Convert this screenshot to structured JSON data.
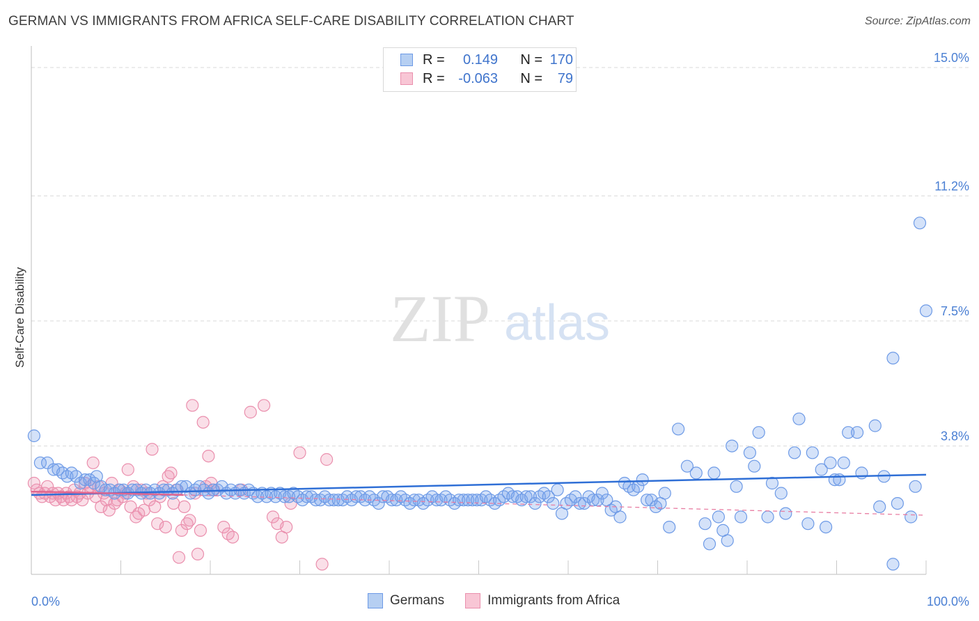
{
  "header": {
    "title": "GERMAN VS IMMIGRANTS FROM AFRICA SELF-CARE DISABILITY CORRELATION CHART",
    "source": "Source: ZipAtlas.com"
  },
  "watermark": {
    "zip": "ZIP",
    "atlas": "atlas"
  },
  "legend_box": {
    "rows": [
      {
        "r_label": "R =",
        "r_value": "0.149",
        "n_label": "N =",
        "n_value": "170",
        "color": "#6d9ae6"
      },
      {
        "r_label": "R =",
        "r_value": "-0.063",
        "n_label": "N =",
        "n_value": "79",
        "color": "#ea8fad"
      }
    ]
  },
  "bottom_legend": {
    "items": [
      {
        "label": "Germans",
        "color": "#6d9ae6"
      },
      {
        "label": "Immigrants from Africa",
        "color": "#ea8fad"
      }
    ]
  },
  "chart_data": {
    "type": "scatter",
    "title": "GERMAN VS IMMIGRANTS FROM AFRICA SELF-CARE DISABILITY CORRELATION CHART",
    "xlabel": "",
    "ylabel": "Self-Care Disability",
    "xlim": [
      0,
      100
    ],
    "ylim": [
      0,
      15.0
    ],
    "x_tick_labels": [
      "0.0%",
      "100.0%"
    ],
    "y_ticks": [
      3.8,
      7.5,
      11.2,
      15.0
    ],
    "y_tick_labels": [
      "3.8%",
      "7.5%",
      "11.2%",
      "15.0%"
    ],
    "grid": true,
    "legend_placement": "top-center",
    "series": [
      {
        "name": "Germans",
        "color": "#6d9ae6",
        "trend": {
          "x": [
            0,
            100
          ],
          "y": [
            2.35,
            2.95
          ],
          "style": "solid"
        },
        "points": [
          [
            0.3,
            4.1
          ],
          [
            1.0,
            3.3
          ],
          [
            1.8,
            3.3
          ],
          [
            2.5,
            3.1
          ],
          [
            3.0,
            3.1
          ],
          [
            3.5,
            3.0
          ],
          [
            4.0,
            2.9
          ],
          [
            4.5,
            3.0
          ],
          [
            5.0,
            2.9
          ],
          [
            5.5,
            2.7
          ],
          [
            6.0,
            2.8
          ],
          [
            6.5,
            2.8
          ],
          [
            7.0,
            2.7
          ],
          [
            7.3,
            2.9
          ],
          [
            7.8,
            2.6
          ],
          [
            8.3,
            2.5
          ],
          [
            8.8,
            2.5
          ],
          [
            9.3,
            2.4
          ],
          [
            9.8,
            2.5
          ],
          [
            10.3,
            2.5
          ],
          [
            10.8,
            2.4
          ],
          [
            11.3,
            2.5
          ],
          [
            11.8,
            2.5
          ],
          [
            12.3,
            2.4
          ],
          [
            12.8,
            2.5
          ],
          [
            13.3,
            2.4
          ],
          [
            13.8,
            2.5
          ],
          [
            14.3,
            2.4
          ],
          [
            14.8,
            2.5
          ],
          [
            15.3,
            2.5
          ],
          [
            15.8,
            2.4
          ],
          [
            16.3,
            2.5
          ],
          [
            16.8,
            2.6
          ],
          [
            17.3,
            2.6
          ],
          [
            17.8,
            2.4
          ],
          [
            18.3,
            2.5
          ],
          [
            18.8,
            2.6
          ],
          [
            19.3,
            2.5
          ],
          [
            19.8,
            2.4
          ],
          [
            20.3,
            2.5
          ],
          [
            20.8,
            2.5
          ],
          [
            21.3,
            2.6
          ],
          [
            21.8,
            2.4
          ],
          [
            22.3,
            2.5
          ],
          [
            22.8,
            2.4
          ],
          [
            23.3,
            2.5
          ],
          [
            23.8,
            2.4
          ],
          [
            24.3,
            2.5
          ],
          [
            24.8,
            2.4
          ],
          [
            25.3,
            2.3
          ],
          [
            25.8,
            2.4
          ],
          [
            26.3,
            2.3
          ],
          [
            26.8,
            2.4
          ],
          [
            27.3,
            2.3
          ],
          [
            27.8,
            2.4
          ],
          [
            28.3,
            2.3
          ],
          [
            28.8,
            2.3
          ],
          [
            29.3,
            2.4
          ],
          [
            29.8,
            2.3
          ],
          [
            30.3,
            2.2
          ],
          [
            30.8,
            2.3
          ],
          [
            31.3,
            2.3
          ],
          [
            31.8,
            2.2
          ],
          [
            32.3,
            2.2
          ],
          [
            32.8,
            2.3
          ],
          [
            33.3,
            2.2
          ],
          [
            33.8,
            2.2
          ],
          [
            34.3,
            2.2
          ],
          [
            34.8,
            2.2
          ],
          [
            35.3,
            2.3
          ],
          [
            35.8,
            2.2
          ],
          [
            36.3,
            2.3
          ],
          [
            36.8,
            2.3
          ],
          [
            37.3,
            2.2
          ],
          [
            37.8,
            2.3
          ],
          [
            38.3,
            2.2
          ],
          [
            38.8,
            2.1
          ],
          [
            39.3,
            2.3
          ],
          [
            39.8,
            2.3
          ],
          [
            40.3,
            2.2
          ],
          [
            40.8,
            2.2
          ],
          [
            41.3,
            2.3
          ],
          [
            41.8,
            2.2
          ],
          [
            42.3,
            2.1
          ],
          [
            42.8,
            2.2
          ],
          [
            43.3,
            2.2
          ],
          [
            43.8,
            2.1
          ],
          [
            44.3,
            2.2
          ],
          [
            44.8,
            2.3
          ],
          [
            45.3,
            2.2
          ],
          [
            45.8,
            2.2
          ],
          [
            46.3,
            2.3
          ],
          [
            46.8,
            2.2
          ],
          [
            47.3,
            2.1
          ],
          [
            47.8,
            2.2
          ],
          [
            48.3,
            2.2
          ],
          [
            48.8,
            2.2
          ],
          [
            49.3,
            2.2
          ],
          [
            49.8,
            2.2
          ],
          [
            50.3,
            2.2
          ],
          [
            50.8,
            2.3
          ],
          [
            51.3,
            2.2
          ],
          [
            51.8,
            2.1
          ],
          [
            52.3,
            2.2
          ],
          [
            52.8,
            2.3
          ],
          [
            53.3,
            2.4
          ],
          [
            53.8,
            2.3
          ],
          [
            54.3,
            2.3
          ],
          [
            54.8,
            2.2
          ],
          [
            55.3,
            2.3
          ],
          [
            55.8,
            2.3
          ],
          [
            56.3,
            2.1
          ],
          [
            56.8,
            2.3
          ],
          [
            57.3,
            2.4
          ],
          [
            57.8,
            2.3
          ],
          [
            58.3,
            2.1
          ],
          [
            58.8,
            2.5
          ],
          [
            59.3,
            1.8
          ],
          [
            59.8,
            2.1
          ],
          [
            60.3,
            2.2
          ],
          [
            60.8,
            2.3
          ],
          [
            61.3,
            2.1
          ],
          [
            61.8,
            2.1
          ],
          [
            62.3,
            2.3
          ],
          [
            62.8,
            2.2
          ],
          [
            63.3,
            2.2
          ],
          [
            63.8,
            2.4
          ],
          [
            64.3,
            2.2
          ],
          [
            64.8,
            1.9
          ],
          [
            65.3,
            2.0
          ],
          [
            65.8,
            1.7
          ],
          [
            66.3,
            2.7
          ],
          [
            66.8,
            2.6
          ],
          [
            67.3,
            2.5
          ],
          [
            67.8,
            2.6
          ],
          [
            68.3,
            2.8
          ],
          [
            68.8,
            2.2
          ],
          [
            69.3,
            2.2
          ],
          [
            69.8,
            2.0
          ],
          [
            70.3,
            2.1
          ],
          [
            70.8,
            2.4
          ],
          [
            71.3,
            1.4
          ],
          [
            72.3,
            4.3
          ],
          [
            73.3,
            3.2
          ],
          [
            74.3,
            3.0
          ],
          [
            75.3,
            1.5
          ],
          [
            75.8,
            0.9
          ],
          [
            76.3,
            3.0
          ],
          [
            76.8,
            1.7
          ],
          [
            77.3,
            1.3
          ],
          [
            77.8,
            1.0
          ],
          [
            78.3,
            3.8
          ],
          [
            78.8,
            2.6
          ],
          [
            79.3,
            1.7
          ],
          [
            80.3,
            3.6
          ],
          [
            80.8,
            3.2
          ],
          [
            81.3,
            4.2
          ],
          [
            82.3,
            1.7
          ],
          [
            82.8,
            2.7
          ],
          [
            83.8,
            2.4
          ],
          [
            84.3,
            1.8
          ],
          [
            85.3,
            3.6
          ],
          [
            85.8,
            4.6
          ],
          [
            86.8,
            1.5
          ],
          [
            87.3,
            3.6
          ],
          [
            88.3,
            3.1
          ],
          [
            88.8,
            1.4
          ],
          [
            89.3,
            3.3
          ],
          [
            89.8,
            2.8
          ],
          [
            90.3,
            2.8
          ],
          [
            90.8,
            3.3
          ],
          [
            91.3,
            4.2
          ],
          [
            92.3,
            4.2
          ],
          [
            92.8,
            3.0
          ],
          [
            94.3,
            4.4
          ],
          [
            94.8,
            2.0
          ],
          [
            95.3,
            2.9
          ],
          [
            96.3,
            0.3
          ],
          [
            96.8,
            2.1
          ],
          [
            96.3,
            6.4
          ],
          [
            98.3,
            1.7
          ],
          [
            98.8,
            2.6
          ],
          [
            99.3,
            10.4
          ],
          [
            100.0,
            7.8
          ]
        ]
      },
      {
        "name": "Immigrants from Africa",
        "color": "#ea8fad",
        "trend": {
          "x": [
            0,
            17,
            100
          ],
          "y": [
            2.45,
            2.35,
            1.75
          ],
          "style": "solid-then-dashed"
        },
        "points": [
          [
            0.3,
            2.7
          ],
          [
            0.6,
            2.5
          ],
          [
            0.9,
            2.4
          ],
          [
            1.2,
            2.3
          ],
          [
            1.5,
            2.4
          ],
          [
            1.8,
            2.6
          ],
          [
            2.1,
            2.3
          ],
          [
            2.4,
            2.4
          ],
          [
            2.7,
            2.2
          ],
          [
            3.0,
            2.4
          ],
          [
            3.3,
            2.3
          ],
          [
            3.6,
            2.2
          ],
          [
            3.9,
            2.4
          ],
          [
            4.2,
            2.3
          ],
          [
            4.5,
            2.2
          ],
          [
            4.8,
            2.5
          ],
          [
            5.1,
            2.3
          ],
          [
            5.4,
            2.4
          ],
          [
            5.7,
            2.2
          ],
          [
            6.0,
            2.7
          ],
          [
            6.3,
            2.4
          ],
          [
            6.6,
            2.6
          ],
          [
            6.9,
            3.3
          ],
          [
            7.2,
            2.3
          ],
          [
            7.5,
            2.6
          ],
          [
            7.8,
            2.0
          ],
          [
            8.1,
            2.4
          ],
          [
            8.4,
            2.2
          ],
          [
            8.7,
            1.9
          ],
          [
            9.0,
            2.7
          ],
          [
            9.3,
            2.1
          ],
          [
            9.6,
            2.2
          ],
          [
            9.9,
            2.5
          ],
          [
            10.2,
            2.3
          ],
          [
            10.5,
            2.4
          ],
          [
            10.8,
            3.1
          ],
          [
            11.1,
            2.0
          ],
          [
            11.4,
            2.6
          ],
          [
            11.7,
            1.7
          ],
          [
            12.0,
            1.8
          ],
          [
            12.3,
            2.5
          ],
          [
            12.6,
            1.9
          ],
          [
            12.9,
            2.4
          ],
          [
            13.2,
            2.2
          ],
          [
            13.5,
            3.7
          ],
          [
            13.8,
            2.0
          ],
          [
            14.1,
            1.5
          ],
          [
            14.4,
            2.3
          ],
          [
            14.7,
            2.6
          ],
          [
            15.0,
            1.4
          ],
          [
            15.3,
            2.9
          ],
          [
            15.6,
            3.0
          ],
          [
            15.9,
            2.1
          ],
          [
            16.2,
            2.5
          ],
          [
            16.5,
            0.5
          ],
          [
            16.8,
            1.3
          ],
          [
            17.1,
            2.0
          ],
          [
            17.4,
            1.5
          ],
          [
            17.7,
            1.6
          ],
          [
            18.0,
            5.0
          ],
          [
            18.3,
            2.4
          ],
          [
            18.6,
            0.6
          ],
          [
            18.9,
            1.3
          ],
          [
            19.2,
            4.5
          ],
          [
            19.5,
            2.6
          ],
          [
            19.8,
            3.5
          ],
          [
            20.1,
            2.7
          ],
          [
            20.4,
            2.5
          ],
          [
            21.5,
            1.4
          ],
          [
            22.0,
            1.2
          ],
          [
            22.5,
            1.1
          ],
          [
            23.5,
            2.5
          ],
          [
            24.5,
            4.8
          ],
          [
            26.0,
            5.0
          ],
          [
            27.0,
            1.7
          ],
          [
            27.5,
            1.5
          ],
          [
            28.0,
            1.1
          ],
          [
            28.5,
            1.4
          ],
          [
            29.0,
            2.1
          ],
          [
            30.0,
            3.6
          ],
          [
            32.5,
            0.3
          ],
          [
            33.0,
            3.4
          ]
        ]
      }
    ]
  }
}
